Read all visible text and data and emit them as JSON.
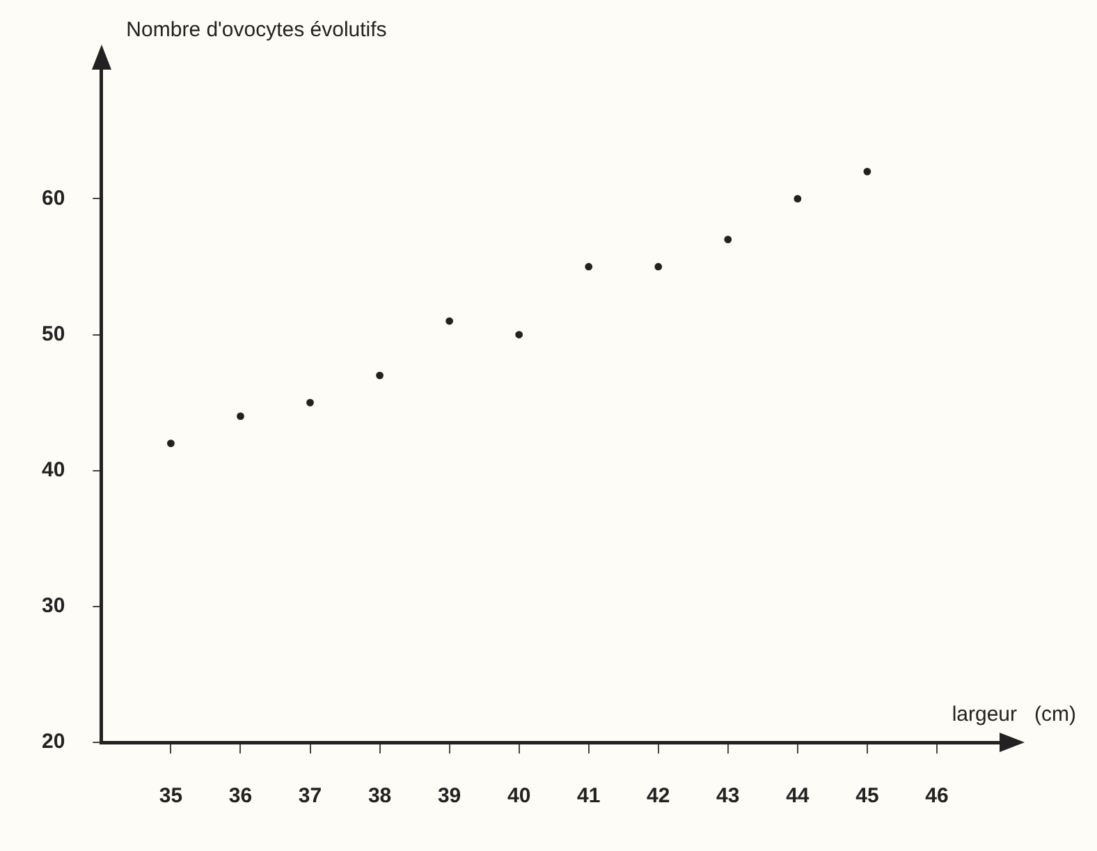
{
  "chart_data": {
    "type": "scatter",
    "xlabel": "largeur   (cm)",
    "ylabel": "Nombre d'ovocytes évolutifs",
    "x": [
      35,
      36,
      37,
      38,
      39,
      40,
      41,
      42,
      43,
      44,
      45
    ],
    "series": [
      {
        "color": "#222222",
        "values": [
          42,
          44,
          45,
          47,
          51,
          50,
          55,
          55,
          57,
          60,
          62
        ]
      }
    ],
    "xlim": [
      34,
      46.9
    ],
    "xticks": [
      35,
      36,
      37,
      38,
      39,
      40,
      41,
      42,
      43,
      44,
      45,
      46
    ],
    "ylim": [
      20,
      69.5
    ],
    "yticks": [
      20,
      30,
      40,
      50,
      60
    ],
    "grid": false,
    "legend": false,
    "marker": "circle"
  }
}
